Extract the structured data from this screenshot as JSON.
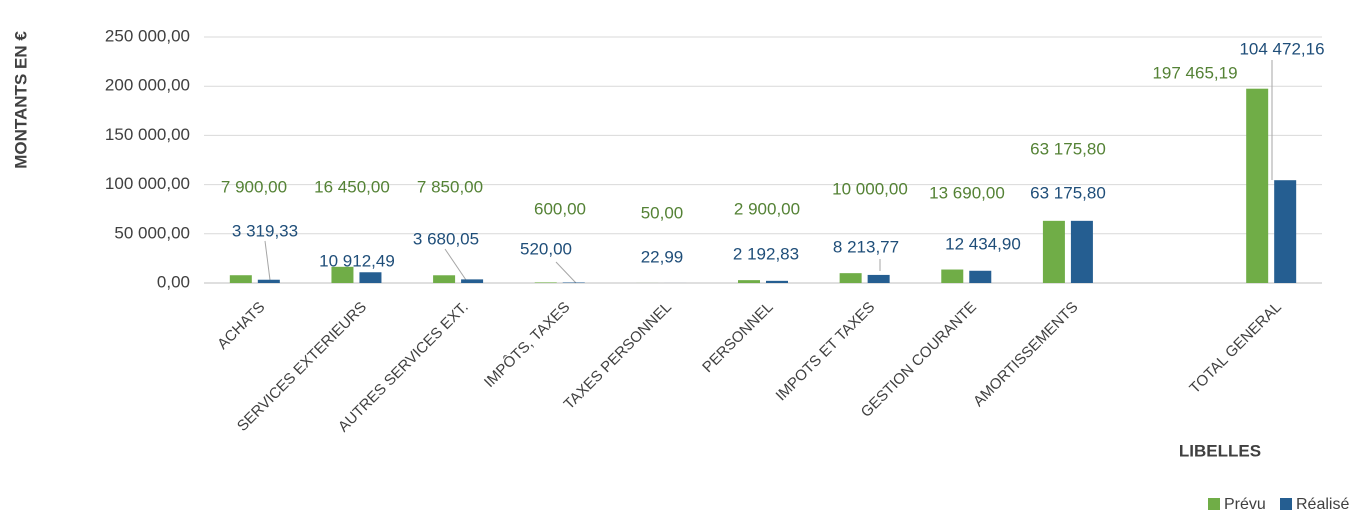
{
  "chart_data": {
    "type": "bar",
    "y_label": "MONTANTS EN €",
    "x_label": "LIBELLES",
    "categories": [
      "ACHATS",
      "SERVICES EXTERIEURS",
      "AUTRES SERVICES EXT.",
      "IMPÔTS, TAXES",
      "TAXES PERSONNEL",
      "PERSONNEL",
      "IMPOTS ET TAXES",
      "GESTION COURANTE",
      "AMORTISSEMENTS",
      null,
      "TOTAL GENERAL"
    ],
    "series": [
      {
        "name": "Prévu",
        "color": "#70ad47",
        "values": [
          7900,
          16450,
          7850,
          600,
          50,
          2900,
          10000,
          13690,
          63175.8,
          null,
          197465.19
        ],
        "value_labels": [
          "7 900,00",
          "16 450,00",
          "7 850,00",
          "600,00",
          "50,00",
          "2 900,00",
          "10 000,00",
          "13 690,00",
          "63 175,80",
          null,
          "197 465,19"
        ]
      },
      {
        "name": "Réalisé",
        "color": "#255e91",
        "values": [
          3319.33,
          10912.49,
          3680.05,
          520,
          22.99,
          2192.83,
          8213.77,
          12434.9,
          63175.8,
          null,
          104472.16
        ],
        "value_labels": [
          "3 319,33",
          "10 912,49",
          "3 680,05",
          "520,00",
          "22,99",
          "2 192,83",
          "8 213,77",
          "12 434,90",
          "63 175,80",
          null,
          "104 472,16"
        ]
      }
    ],
    "ylim": [
      0,
      250000
    ],
    "yticks": [
      {
        "value": 0,
        "label": "0,00"
      },
      {
        "value": 50000,
        "label": "50 000,00"
      },
      {
        "value": 100000,
        "label": "100 000,00"
      },
      {
        "value": 150000,
        "label": "150 000,00"
      },
      {
        "value": 200000,
        "label": "200 000,00"
      },
      {
        "value": 250000,
        "label": "250 000,00"
      }
    ],
    "grid": true,
    "legend": "bottom-right"
  }
}
